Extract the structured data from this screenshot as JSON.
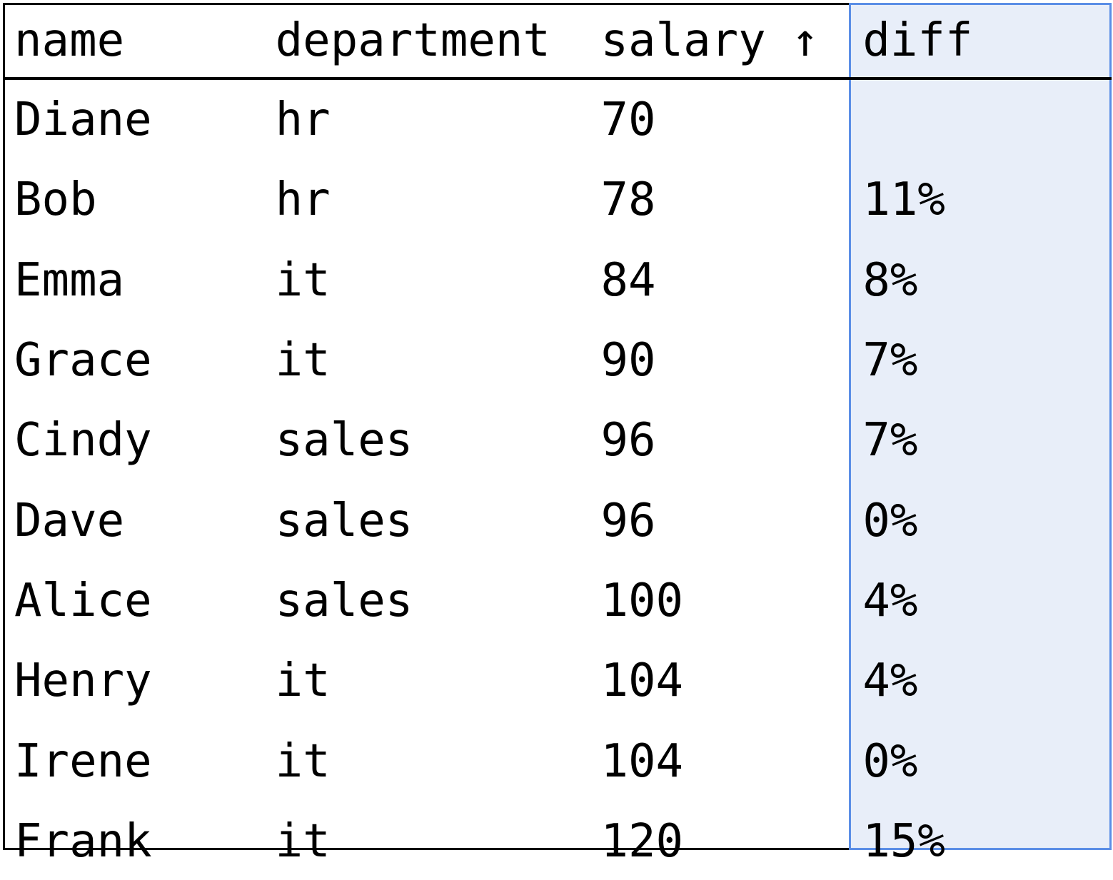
{
  "table": {
    "columns": {
      "name": "name",
      "department": "department",
      "salary": "salary",
      "salary_sort_indicator": "↑",
      "diff": "diff"
    },
    "rows": [
      {
        "name": "Diane",
        "department": "hr",
        "salary": "70",
        "diff": ""
      },
      {
        "name": "Bob",
        "department": "hr",
        "salary": "78",
        "diff": "11%"
      },
      {
        "name": "Emma",
        "department": "it",
        "salary": "84",
        "diff": "8%"
      },
      {
        "name": "Grace",
        "department": "it",
        "salary": "90",
        "diff": "7%"
      },
      {
        "name": "Cindy",
        "department": "sales",
        "salary": "96",
        "diff": "7%"
      },
      {
        "name": "Dave",
        "department": "sales",
        "salary": "96",
        "diff": "0%"
      },
      {
        "name": "Alice",
        "department": "sales",
        "salary": "100",
        "diff": "4%"
      },
      {
        "name": "Henry",
        "department": "it",
        "salary": "104",
        "diff": "4%"
      },
      {
        "name": "Irene",
        "department": "it",
        "salary": "104",
        "diff": "0%"
      },
      {
        "name": "Frank",
        "department": "it",
        "salary": "120",
        "diff": "15%"
      }
    ]
  },
  "colors": {
    "highlight_border": "#5b8ee6",
    "highlight_fill": "#e8eef9",
    "text": "#000000"
  }
}
